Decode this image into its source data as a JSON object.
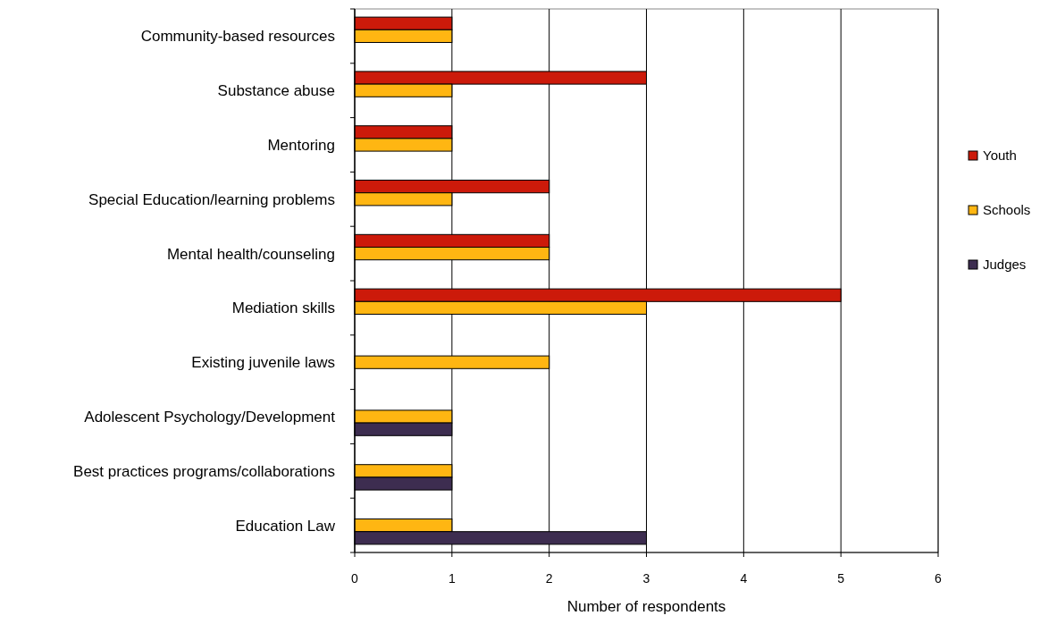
{
  "chart_data": {
    "type": "bar",
    "orientation": "horizontal",
    "xlabel": "Number of respondents",
    "categories": [
      "Community-based resources",
      "Substance abuse",
      "Mentoring",
      "Special Education/learning problems",
      "Mental health/counseling",
      "Mediation skills",
      "Existing juvenile laws ",
      "Adolescent Psychology/Development",
      "Best practices programs/collaborations",
      "Education Law"
    ],
    "series": [
      {
        "name": "Youth",
        "color": "#cc1a0a",
        "values": [
          1,
          3,
          1,
          2,
          2,
          5,
          null,
          null,
          null,
          null
        ]
      },
      {
        "name": "Schools",
        "color": "#ffb612",
        "values": [
          1,
          1,
          1,
          1,
          2,
          3,
          2,
          1,
          1,
          1
        ]
      },
      {
        "name": "Judges",
        "color": "#3d2d50",
        "values": [
          null,
          null,
          null,
          null,
          null,
          null,
          null,
          1,
          1,
          3
        ]
      }
    ],
    "xlim": [
      0,
      6
    ],
    "xticks": [
      0,
      1,
      2,
      3,
      4,
      5,
      6
    ],
    "grid": "x",
    "legend": "right"
  }
}
